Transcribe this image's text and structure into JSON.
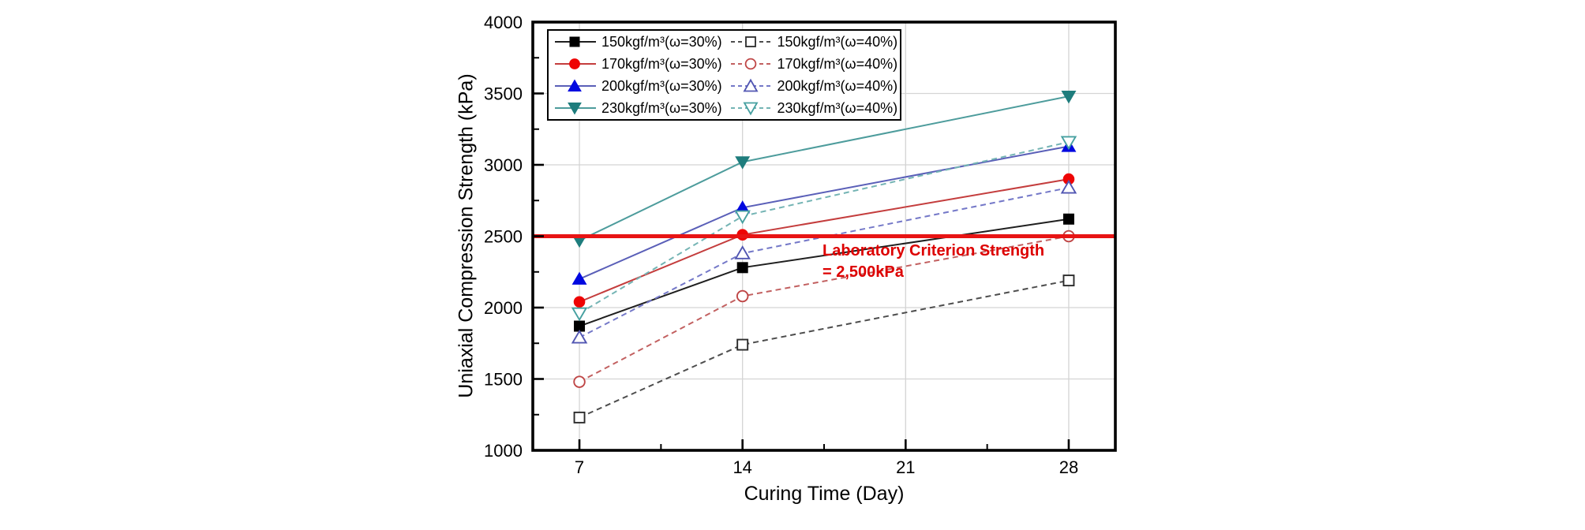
{
  "chart_data": {
    "type": "line",
    "title": "",
    "xlabel": "Curing Time (Day)",
    "ylabel": "Uniaxial Compression Strength (kPa)",
    "x": [
      7,
      14,
      28
    ],
    "xlim": [
      5,
      30
    ],
    "ylim": [
      1000,
      4000
    ],
    "xticks_major": [
      7,
      14,
      21,
      28
    ],
    "xticks_minor": [
      10.5,
      17.5,
      24.5
    ],
    "yticks_major": [
      1000,
      1500,
      2000,
      2500,
      3000,
      3500,
      4000
    ],
    "yticks_minor": [
      1250,
      1750,
      2250,
      2750,
      3250,
      3750
    ],
    "grid": true,
    "legend_position": "top-left-inside",
    "series": [
      {
        "label": "150kgf/m³(ω=30%)",
        "line_style": "solid",
        "line_color": "#1f1f1f",
        "marker": "square",
        "marker_fill": "filled",
        "marker_color": "#000000",
        "values": [
          1870,
          2280,
          2620
        ]
      },
      {
        "label": "150kgf/m³(ω=40%)",
        "line_style": "dashed",
        "line_color": "#4d4d4d",
        "marker": "square",
        "marker_fill": "open",
        "marker_color": "#2b2b2b",
        "values": [
          1230,
          1740,
          2190
        ]
      },
      {
        "label": "170kgf/m³(ω=30%)",
        "line_style": "solid",
        "line_color": "#c43d3d",
        "marker": "circle",
        "marker_fill": "filled",
        "marker_color": "#ee0404",
        "values": [
          2040,
          2510,
          2900
        ]
      },
      {
        "label": "170kgf/m³(ω=40%)",
        "line_style": "dashed",
        "line_color": "#c26060",
        "marker": "circle",
        "marker_fill": "open",
        "marker_color": "#bf4646",
        "values": [
          1480,
          2080,
          2500
        ]
      },
      {
        "label": "200kgf/m³(ω=30%)",
        "line_style": "solid",
        "line_color": "#5a5fb8",
        "marker": "tri-up",
        "marker_fill": "filled",
        "marker_color": "#0008e0",
        "values": [
          2200,
          2700,
          3130
        ]
      },
      {
        "label": "200kgf/m³(ω=40%)",
        "line_style": "dashed",
        "line_color": "#7478c8",
        "marker": "tri-up",
        "marker_fill": "open",
        "marker_color": "#5156b2",
        "values": [
          1790,
          2380,
          2840
        ]
      },
      {
        "label": "230kgf/m³(ω=30%)",
        "line_style": "solid",
        "line_color": "#4d9c9c",
        "marker": "tri-down",
        "marker_fill": "filled",
        "marker_color": "#1e7d7d",
        "values": [
          2470,
          3020,
          3480
        ]
      },
      {
        "label": "230kgf/m³(ω=40%)",
        "line_style": "dashed",
        "line_color": "#74b4b4",
        "marker": "tri-down",
        "marker_fill": "open",
        "marker_color": "#46a0a0",
        "values": [
          1960,
          2640,
          3160
        ]
      }
    ],
    "reference_line": {
      "value": 2500,
      "color": "#e81414",
      "label_line1": "Laboratory Criterion Strength",
      "label_line2": "= 2,500kPa"
    },
    "colors": {
      "grid": "#d4d4d4",
      "frame": "#000000",
      "background": "#ffffff"
    }
  }
}
